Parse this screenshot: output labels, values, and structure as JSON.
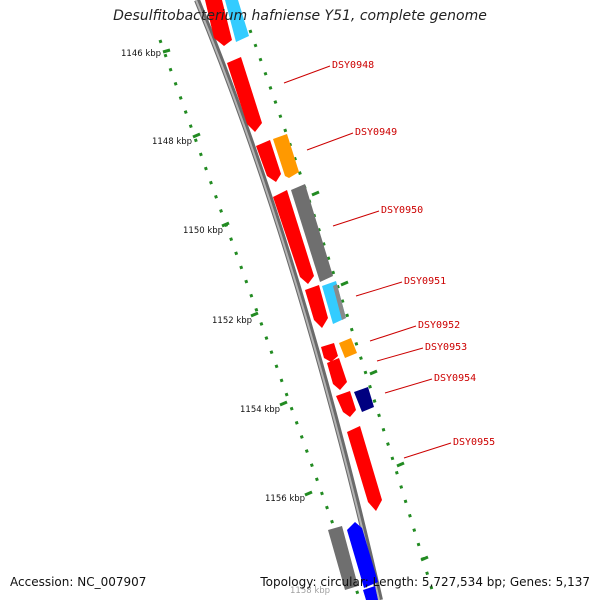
{
  "title": "Desulfitobacterium hafniense Y51, complete genome",
  "accession": "Accession: NC_007907",
  "summary": "Topology: circular; Length: 5,727,534 bp; Genes: 5,137",
  "colors": {
    "red": "#ff0000",
    "orange": "#ff9900",
    "gray": "#777777",
    "cyan": "#33ccff",
    "navy": "#000080",
    "blue": "#0000ff",
    "tick": "#228b22",
    "label": "#cc0000",
    "backbone": "#888888"
  },
  "kbp_labels": [
    {
      "text": "1146 kbp"
    },
    {
      "text": "1148 kbp"
    },
    {
      "text": "1150 kbp"
    },
    {
      "text": "1152 kbp"
    },
    {
      "text": "1154 kbp"
    },
    {
      "text": "1156 kbp"
    }
  ],
  "genes": [
    {
      "name": "DSY0948"
    },
    {
      "name": "DSY0949"
    },
    {
      "name": "DSY0950"
    },
    {
      "name": "DSY0951"
    },
    {
      "name": "DSY0952"
    },
    {
      "name": "DSY0953"
    },
    {
      "name": "DSY0954"
    },
    {
      "name": "DSY0955"
    }
  ]
}
